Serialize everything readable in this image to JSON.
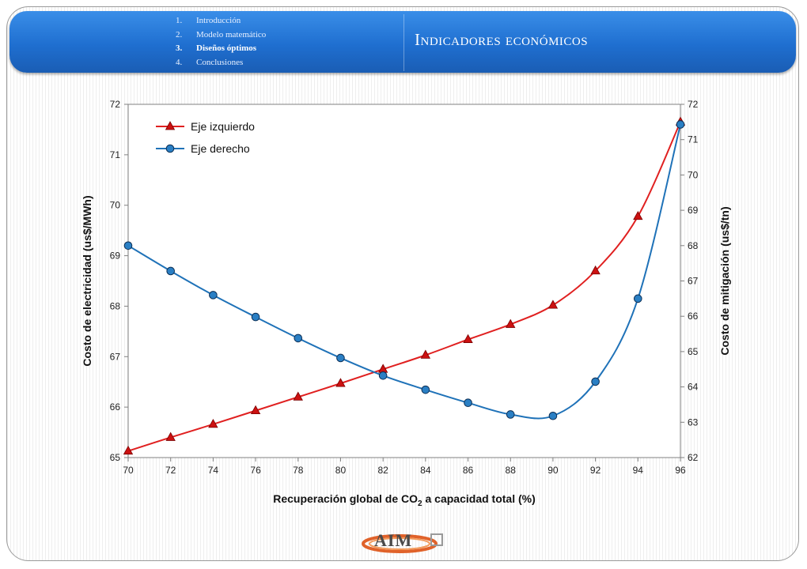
{
  "header": {
    "nav_items": [
      {
        "number": "1.",
        "label": "Introducción"
      },
      {
        "number": "2.",
        "label": "Modelo matemático"
      },
      {
        "number": "3.",
        "label": "Diseños óptimos"
      },
      {
        "number": "4.",
        "label": "Conclusiones"
      }
    ],
    "title": "Indicadores económicos"
  },
  "logo": {
    "text": "AIM"
  },
  "chart_data": {
    "type": "line",
    "x": [
      70,
      72,
      74,
      76,
      78,
      80,
      82,
      84,
      86,
      88,
      90,
      92,
      94,
      96
    ],
    "xlim": [
      70,
      96
    ],
    "xticks": [
      70,
      72,
      74,
      76,
      78,
      80,
      82,
      84,
      86,
      88,
      90,
      92,
      94,
      96
    ],
    "xlabel_parts": [
      "Recuperación global  de CO",
      "2",
      " a capacidad  total (%)"
    ],
    "ylabel_left": "Costo de electricidad  (us$/MWh)",
    "ylabel_right": "Costo de mitigación  (us$/tn)",
    "ylim_left": [
      65,
      72
    ],
    "ylim_right": [
      62,
      72
    ],
    "yticks_left": [
      65,
      66,
      67,
      68,
      69,
      70,
      71,
      72
    ],
    "yticks_right": [
      62,
      63,
      64,
      65,
      66,
      67,
      68,
      69,
      70,
      71,
      72
    ],
    "grid": false,
    "legend_position": "top-left",
    "series": [
      {
        "name": "Eje izquierdo",
        "axis": "left",
        "marker": "triangle",
        "color": "#e02020",
        "values": [
          65.13,
          65.4,
          65.66,
          65.93,
          66.2,
          66.47,
          66.75,
          67.03,
          67.34,
          67.64,
          68.02,
          68.7,
          69.78,
          71.65
        ]
      },
      {
        "name": "Eje derecho",
        "axis": "right",
        "marker": "circle",
        "color": "#1f72b8",
        "values": [
          68.0,
          67.28,
          66.6,
          65.98,
          65.38,
          64.82,
          64.32,
          63.92,
          63.55,
          63.22,
          63.18,
          64.15,
          66.5,
          71.43
        ]
      }
    ]
  }
}
